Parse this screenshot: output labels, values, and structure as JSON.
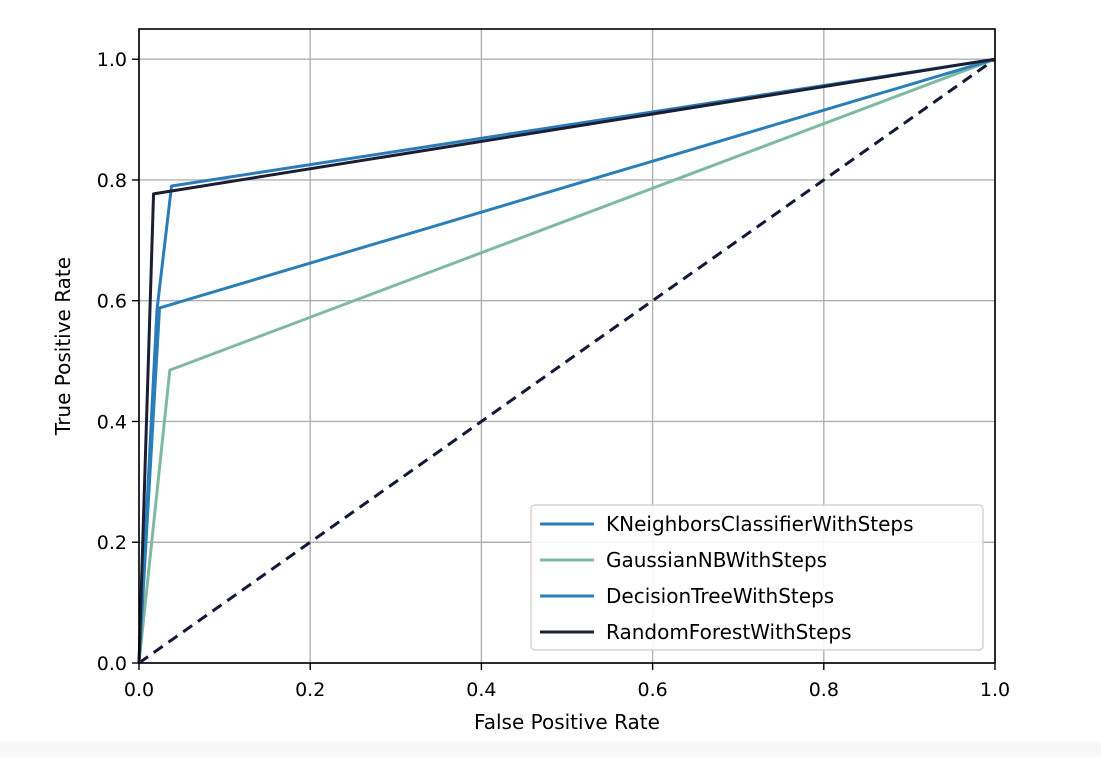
{
  "chart_data": {
    "type": "line",
    "title": "",
    "xlabel": "False Positive Rate",
    "ylabel": "True Positive Rate",
    "xlim": [
      0.0,
      1.0
    ],
    "ylim": [
      0.0,
      1.05
    ],
    "xticks": [
      0.0,
      0.2,
      0.4,
      0.6,
      0.8,
      1.0
    ],
    "yticks": [
      0.0,
      0.2,
      0.4,
      0.6,
      0.8,
      1.0
    ],
    "xtick_labels": [
      "0.0",
      "0.2",
      "0.4",
      "0.6",
      "0.8",
      "1.0"
    ],
    "ytick_labels": [
      "0.0",
      "0.2",
      "0.4",
      "0.6",
      "0.8",
      "1.0"
    ],
    "grid": true,
    "legend_position": "lower-right",
    "series": [
      {
        "name": "KNeighborsClassifierWithSteps",
        "color": "#2b7bba",
        "x": [
          0.0,
          0.021,
          0.038,
          1.0
        ],
        "y": [
          0.0,
          0.585,
          0.79,
          1.0
        ]
      },
      {
        "name": "GaussianNBWithSteps",
        "color": "#7fb9a0",
        "x": [
          0.0,
          0.036,
          1.0
        ],
        "y": [
          0.0,
          0.485,
          1.0
        ]
      },
      {
        "name": "DecisionTreeWithSteps",
        "color": "#2b7fb8",
        "x": [
          0.0,
          0.024,
          1.0
        ],
        "y": [
          0.0,
          0.588,
          1.0
        ]
      },
      {
        "name": "RandomForestWithSteps",
        "color": "#1b1f33",
        "x": [
          0.0,
          0.017,
          1.0
        ],
        "y": [
          0.0,
          0.777,
          1.0
        ]
      }
    ],
    "reference_line": {
      "style": "dashed",
      "color": "#131a38",
      "x": [
        0.0,
        1.0
      ],
      "y": [
        0.0,
        1.0
      ]
    }
  }
}
